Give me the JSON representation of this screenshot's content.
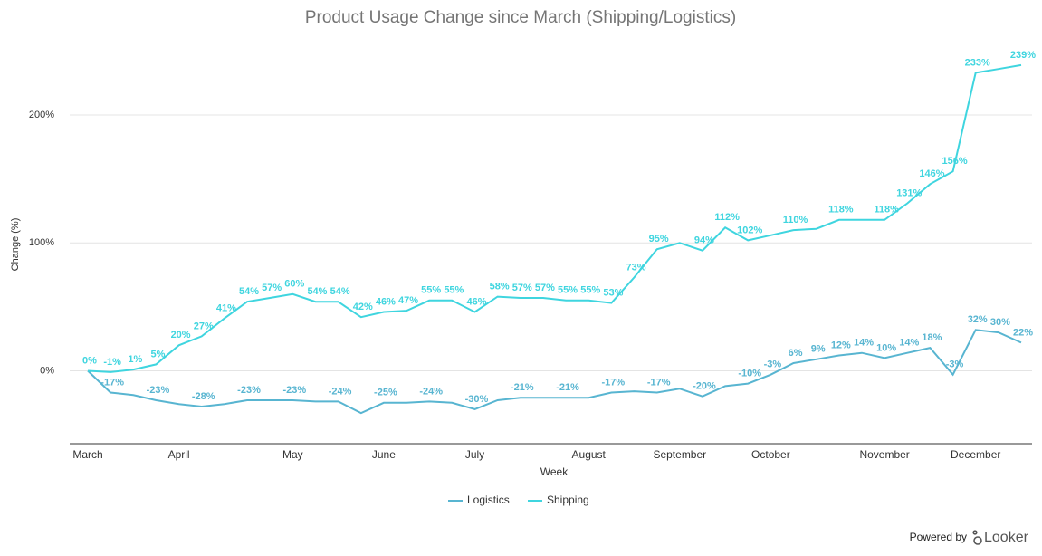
{
  "chart_data": {
    "type": "line",
    "title": "Product Usage Change since March (Shipping/Logistics)",
    "x_label": "Week",
    "y_label": "Change (%)",
    "categories": [
      "March",
      null,
      null,
      null,
      "April",
      null,
      null,
      null,
      null,
      "May",
      null,
      null,
      null,
      "June",
      null,
      null,
      null,
      "July",
      null,
      null,
      null,
      null,
      "August",
      null,
      null,
      null,
      "September",
      null,
      null,
      null,
      "October",
      null,
      null,
      null,
      null,
      "November",
      null,
      null,
      null,
      "December",
      null,
      null
    ],
    "ylim": [
      -57,
      251
    ],
    "yticks": [
      {
        "value": 0,
        "label": "0%"
      },
      {
        "value": 100,
        "label": "100%"
      },
      {
        "value": 200,
        "label": "200%"
      }
    ],
    "grid": true,
    "legend": "bottom",
    "series": [
      {
        "name": "Logistics",
        "color": "#58b5d1",
        "values": [
          0,
          -17,
          -19,
          -23,
          -26,
          -28,
          -26,
          -23,
          -23,
          -23,
          -24,
          -24,
          -33,
          -25,
          -25,
          -24,
          -25,
          -30,
          -23,
          -21,
          -21,
          -21,
          -21,
          -17,
          -16,
          -17,
          -14,
          -20,
          -12,
          -10,
          -3,
          6,
          9,
          12,
          14,
          10,
          14,
          18,
          -3,
          32,
          30,
          22
        ],
        "value_labels": [
          null,
          "-17%",
          null,
          "-23%",
          null,
          "-28%",
          null,
          "-23%",
          null,
          "-23%",
          null,
          "-24%",
          null,
          "-25%",
          null,
          "-24%",
          null,
          "-30%",
          null,
          "-21%",
          null,
          "-21%",
          null,
          "-17%",
          null,
          "-17%",
          null,
          "-20%",
          null,
          "-10%",
          "-3%",
          "6%",
          "9%",
          "12%",
          "14%",
          "10%",
          "14%",
          "18%",
          "-3%",
          "32%",
          "30%",
          "22%"
        ]
      },
      {
        "name": "Shipping",
        "color": "#3fd5df",
        "values": [
          0,
          -1,
          1,
          5,
          20,
          27,
          41,
          54,
          57,
          60,
          54,
          54,
          42,
          46,
          47,
          55,
          55,
          46,
          58,
          57,
          57,
          55,
          55,
          53,
          73,
          95,
          100,
          94,
          112,
          102,
          106,
          110,
          111,
          118,
          118,
          118,
          131,
          146,
          156,
          233,
          236,
          239
        ],
        "value_labels": [
          "0%",
          "-1%",
          "1%",
          "5%",
          "20%",
          "27%",
          "41%",
          "54%",
          "57%",
          "60%",
          "54%",
          "54%",
          "42%",
          "46%",
          "47%",
          "55%",
          "55%",
          "46%",
          "58%",
          "57%",
          "57%",
          "55%",
          "55%",
          "53%",
          "73%",
          "95%",
          null,
          "94%",
          "112%",
          "102%",
          null,
          "110%",
          null,
          "118%",
          null,
          "118%",
          "131%",
          "146%",
          "156%",
          "233%",
          null,
          "239%"
        ]
      }
    ]
  },
  "footer": {
    "powered_by": "Powered by",
    "brand": "Looker"
  }
}
